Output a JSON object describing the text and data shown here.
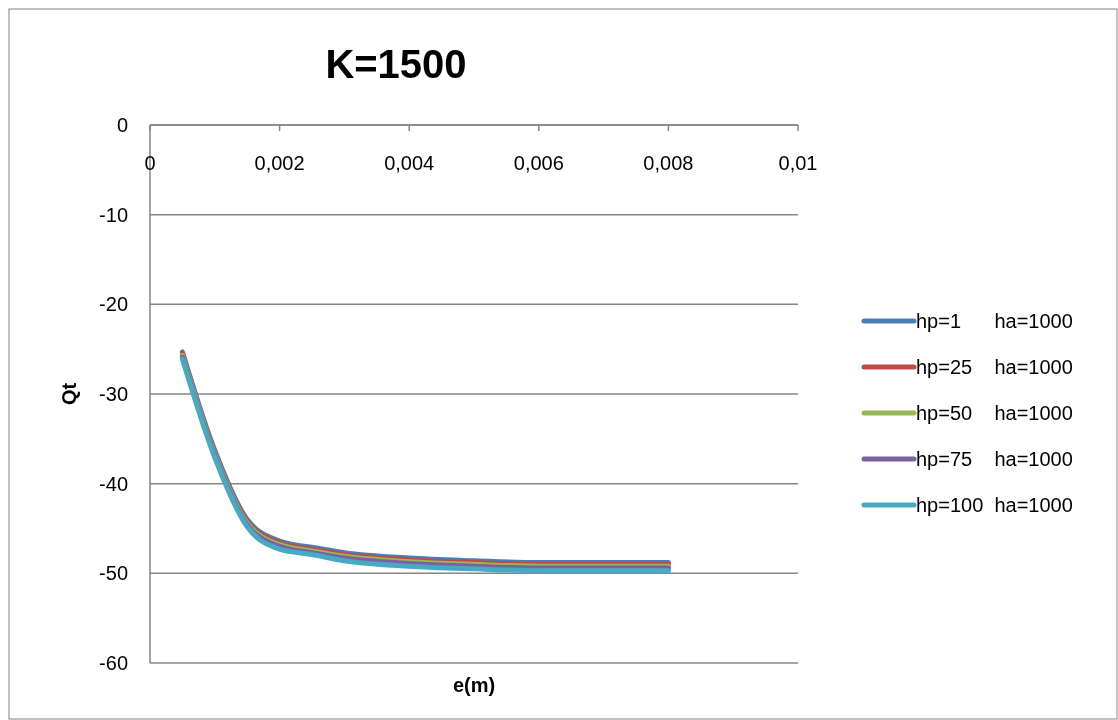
{
  "chart_data": {
    "type": "line",
    "title": "K=1500",
    "xlabel": "e(m)",
    "ylabel": "Qt",
    "x": [
      0.0005,
      0.001,
      0.0015,
      0.002,
      0.0025,
      0.003,
      0.004,
      0.005,
      0.006,
      0.007,
      0.008
    ],
    "series": [
      {
        "name": "hp=1      ha=1000",
        "color": "#4a7ebb",
        "values": [
          -25.3,
          -36.3,
          -44.0,
          -46.4,
          -47.1,
          -47.7,
          -48.3,
          -48.6,
          -48.8,
          -48.8,
          -48.8
        ]
      },
      {
        "name": "hp=25    ha=1000",
        "color": "#be4b48",
        "values": [
          -25.5,
          -36.5,
          -44.2,
          -46.6,
          -47.3,
          -47.9,
          -48.5,
          -48.8,
          -49.0,
          -49.0,
          -49.0
        ]
      },
      {
        "name": "hp=50    ha=1000",
        "color": "#98b954",
        "values": [
          -25.7,
          -36.7,
          -44.4,
          -46.8,
          -47.5,
          -48.1,
          -48.7,
          -49.0,
          -49.2,
          -49.2,
          -49.2
        ]
      },
      {
        "name": "hp=75    ha=1000",
        "color": "#7d60a0",
        "values": [
          -25.9,
          -36.9,
          -44.6,
          -47.0,
          -47.7,
          -48.3,
          -48.9,
          -49.2,
          -49.4,
          -49.4,
          -49.4
        ]
      },
      {
        "name": "hp=100  ha=1000",
        "color": "#46aac5",
        "values": [
          -26.1,
          -37.1,
          -44.8,
          -47.3,
          -47.9,
          -48.6,
          -49.2,
          -49.5,
          -49.7,
          -49.7,
          -49.7
        ]
      }
    ],
    "xlim": [
      0,
      0.01
    ],
    "xticks": [
      {
        "value": 0,
        "label": "0"
      },
      {
        "value": 0.002,
        "label": "0,002"
      },
      {
        "value": 0.004,
        "label": "0,004"
      },
      {
        "value": 0.006,
        "label": "0,006"
      },
      {
        "value": 0.008,
        "label": "0,008"
      },
      {
        "value": 0.01,
        "label": "0,01"
      }
    ],
    "ylim": [
      -60,
      0
    ],
    "yticks": [
      -60,
      -50,
      -40,
      -30,
      -20,
      -10,
      0
    ],
    "grid": "y",
    "legend": "right",
    "marker": "none",
    "line_style": "solid"
  }
}
